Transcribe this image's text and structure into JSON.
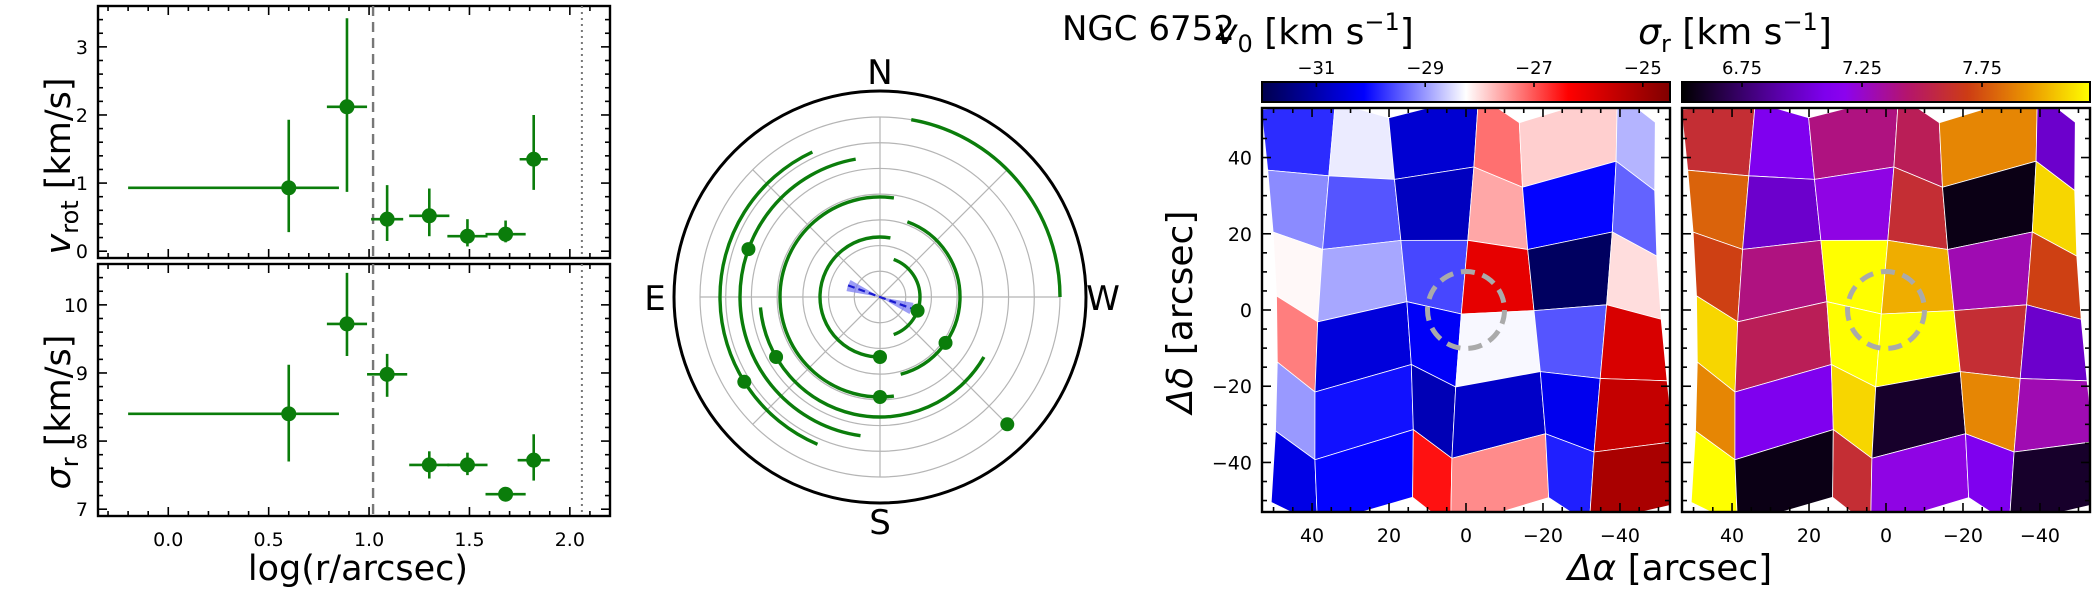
{
  "title": "NGC 6752",
  "chart_data": [
    {
      "type": "scatter",
      "panel": "rotation-profile",
      "ylabel_text": "v",
      "ylabel_sub": "rot",
      "ylabel_units": " [km/s]",
      "xlim": [
        -0.35,
        2.2
      ],
      "ylim": [
        -0.1,
        3.6
      ],
      "xticks": [
        0.0,
        0.5,
        1.0,
        1.5,
        2.0
      ],
      "yticks": [
        0,
        1,
        2,
        3
      ],
      "ytick_labels": [
        "0",
        "1",
        "2",
        "3"
      ],
      "vline_dashed": 1.02,
      "vline_dotted": 2.06,
      "points": [
        {
          "x": 0.6,
          "xerr": [
            0.8,
            0.25
          ],
          "y": 0.93,
          "yerr": [
            0.65,
            1.0
          ]
        },
        {
          "x": 0.89,
          "xerr": [
            0.1,
            0.1
          ],
          "y": 2.12,
          "yerr": [
            1.25,
            1.3
          ]
        },
        {
          "x": 1.09,
          "xerr": [
            0.08,
            0.08
          ],
          "y": 0.47,
          "yerr": [
            0.32,
            0.5
          ]
        },
        {
          "x": 1.3,
          "xerr": [
            0.1,
            0.1
          ],
          "y": 0.52,
          "yerr": [
            0.3,
            0.4
          ]
        },
        {
          "x": 1.49,
          "xerr": [
            0.1,
            0.1
          ],
          "y": 0.22,
          "yerr": [
            0.15,
            0.25
          ]
        },
        {
          "x": 1.68,
          "xerr": [
            0.1,
            0.1
          ],
          "y": 0.25,
          "yerr": [
            0.12,
            0.2
          ]
        },
        {
          "x": 1.82,
          "xerr": [
            0.07,
            0.07
          ],
          "y": 1.35,
          "yerr": [
            0.45,
            0.65
          ]
        }
      ]
    },
    {
      "type": "scatter",
      "panel": "dispersion-profile",
      "ylabel_text": "σ",
      "ylabel_sub": "r",
      "ylabel_units": " [km/s]",
      "xlabel": "log(r/arcsec)",
      "xlim": [
        -0.35,
        2.2
      ],
      "ylim": [
        6.9,
        10.6
      ],
      "xticks": [
        0.0,
        0.5,
        1.0,
        1.5,
        2.0
      ],
      "xtick_labels": [
        "0.0",
        "0.5",
        "1.0",
        "1.5",
        "2.0"
      ],
      "yticks": [
        7,
        8,
        9,
        10
      ],
      "ytick_labels": [
        "7",
        "8",
        "9",
        "10"
      ],
      "vline_dashed": 1.02,
      "vline_dotted": 2.06,
      "points": [
        {
          "x": 0.6,
          "xerr": [
            0.8,
            0.25
          ],
          "y": 8.4,
          "yerr": [
            0.7,
            0.72
          ]
        },
        {
          "x": 0.89,
          "xerr": [
            0.1,
            0.1
          ],
          "y": 9.72,
          "yerr": [
            0.47,
            0.75
          ]
        },
        {
          "x": 1.09,
          "xerr": [
            0.1,
            0.1
          ],
          "y": 8.98,
          "yerr": [
            0.33,
            0.3
          ]
        },
        {
          "x": 1.3,
          "xerr": [
            0.1,
            0.1
          ],
          "y": 7.65,
          "yerr": [
            0.2,
            0.2
          ]
        },
        {
          "x": 1.49,
          "xerr": [
            0.1,
            0.1
          ],
          "y": 7.65,
          "yerr": [
            0.15,
            0.18
          ]
        },
        {
          "x": 1.68,
          "xerr": [
            0.1,
            0.1
          ],
          "y": 7.22,
          "yerr": [
            0.08,
            0.1
          ]
        },
        {
          "x": 1.82,
          "xerr": [
            0.08,
            0.08
          ],
          "y": 7.72,
          "yerr": [
            0.3,
            0.38
          ]
        }
      ]
    },
    {
      "type": "polar",
      "panel": "rotation-axis-angles",
      "directions": {
        "north": "N",
        "south": "S",
        "east": "E",
        "west": "W"
      },
      "rings": 7,
      "axis_angle_deg": 160,
      "axis_uncertainty_deg": 10,
      "arcs": [
        {
          "ring": 2,
          "from": -70,
          "to": 70,
          "dot_angle": -20
        },
        {
          "ring": 3,
          "from": 80,
          "to": 275,
          "dot_angle": 270
        },
        {
          "ring": 4,
          "from": -75,
          "to": 70,
          "dot_angle": -35
        },
        {
          "ring": 5,
          "from": 82,
          "to": 278,
          "dot_angle": 270
        },
        {
          "ring": 6,
          "from": 185,
          "to": 330,
          "dot_angle": 210
        },
        {
          "ring": 7,
          "from": 100,
          "to": 262,
          "dot_angle": 160
        },
        {
          "ring": 8,
          "from": 115,
          "to": 247,
          "dot_angle": 212
        },
        {
          "ring": 9,
          "from": 0,
          "to": 80,
          "dot_angle": 315
        }
      ]
    },
    {
      "type": "heatmap",
      "panel": "velocity-map",
      "colorbar_label_text": "v",
      "colorbar_label_sub": "0",
      "colorbar_label_units": " [km s",
      "colorbar_label_exp": "−1",
      "colorbar_label_end": "]",
      "colorbar_range": [
        -32,
        -24.5
      ],
      "colorbar_ticks": [
        -31,
        -29,
        -27,
        -25
      ],
      "colorbar_tick_labels": [
        "−31",
        "−29",
        "−27",
        "−25"
      ],
      "colormap": "seismic",
      "xlabel_delta": "Δα",
      "xlabel_rest": " [arcsec]",
      "ylabel_delta": "Δδ",
      "ylabel_rest": " [arcsec]",
      "xlim": [
        53,
        -53
      ],
      "ylim": [
        -53,
        53
      ],
      "xticks": [
        40,
        20,
        0,
        -20,
        -40
      ],
      "xtick_labels": [
        "40",
        "20",
        "0",
        "−20",
        "−40"
      ],
      "yticks": [
        40,
        20,
        0,
        -20,
        -40
      ],
      "ytick_labels": [
        "40",
        "20",
        "0",
        "−20",
        "−40"
      ],
      "circle_radius": 10,
      "grid_x": [
        45,
        27,
        9,
        -9,
        -27,
        -45
      ],
      "grid_y": [
        44,
        26,
        8,
        -8,
        -26,
        -44
      ],
      "values": [
        [
          -29.8,
          -28.4,
          -30.6,
          -27.2,
          -27.9,
          -28.8
        ],
        [
          -29.1,
          -29.5,
          -30.8,
          -27.6,
          -30.1,
          -29.4
        ],
        [
          -28.2,
          -28.9,
          -29.6,
          -26.0,
          -31.8,
          -28.0
        ],
        [
          -27.3,
          -30.5,
          -30.2,
          -28.3,
          -29.5,
          -25.8
        ],
        [
          -29.0,
          -30.0,
          -30.9,
          -30.7,
          -30.3,
          -25.5
        ],
        [
          -30.4,
          -30.1,
          -26.5,
          -27.4,
          -29.9,
          -25.1
        ]
      ]
    },
    {
      "type": "heatmap",
      "panel": "dispersion-map",
      "colorbar_label_text": "σ",
      "colorbar_label_sub": "r",
      "colorbar_label_units": " [km s",
      "colorbar_label_exp": "−1",
      "colorbar_label_end": "]",
      "colorbar_range": [
        6.5,
        8.2
      ],
      "colorbar_ticks": [
        6.75,
        7.25,
        7.75
      ],
      "colorbar_tick_labels": [
        "6.75",
        "7.25",
        "7.75"
      ],
      "colormap": "gnuplot",
      "xlim": [
        53,
        -53
      ],
      "ylim": [
        -53,
        53
      ],
      "xticks": [
        40,
        20,
        0,
        -20,
        -40
      ],
      "xtick_labels": [
        "40",
        "20",
        "0",
        "−20",
        "−40"
      ],
      "yticks": [
        40,
        20,
        0,
        -20,
        -40
      ],
      "circle_radius": 10,
      "grid_x": [
        45,
        27,
        9,
        -9,
        -27,
        -45
      ],
      "grid_y": [
        44,
        26,
        8,
        -8,
        -26,
        -44
      ],
      "values": [
        [
          7.6,
          7.1,
          7.4,
          7.5,
          7.9,
          7.0
        ],
        [
          7.8,
          7.0,
          7.2,
          7.6,
          6.55,
          8.1
        ],
        [
          7.7,
          7.4,
          8.2,
          8.0,
          7.3,
          7.7
        ],
        [
          8.1,
          7.5,
          8.2,
          8.2,
          7.6,
          7.0
        ],
        [
          7.9,
          7.1,
          8.1,
          6.6,
          7.9,
          7.3
        ],
        [
          8.2,
          6.55,
          7.6,
          7.2,
          7.1,
          6.6
        ]
      ]
    }
  ]
}
